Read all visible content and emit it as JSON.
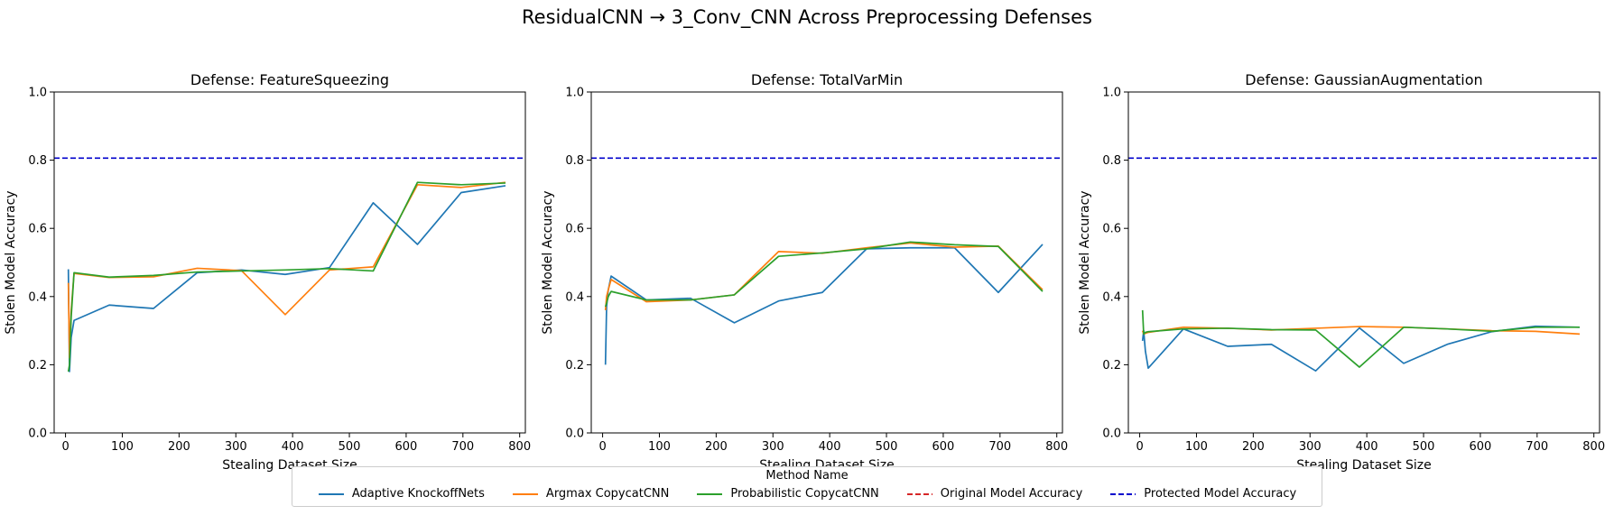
{
  "chart_data": {
    "suptitle": "ResidualCNN → 3_Conv_CNN Across Preprocessing Defenses",
    "x_ticks": [
      0,
      100,
      200,
      300,
      400,
      500,
      600,
      700,
      800
    ],
    "y_ticks": [
      "0.0",
      "0.2",
      "0.4",
      "0.6",
      "0.8",
      "1.0"
    ],
    "xlim": [
      -20,
      810
    ],
    "ylim": [
      0,
      1
    ],
    "colors": {
      "Adaptive KnockoffNets": "#1f77b4",
      "Argmax CopycatCNN": "#ff7f0e",
      "Probabilistic CopycatCNN": "#2ca02c",
      "Original Model Accuracy": "#d62728",
      "Protected Model Accuracy": "#0000cc"
    },
    "legend": {
      "title": "Method Name",
      "entries": [
        {
          "label": "Adaptive KnockoffNets",
          "style": "solid"
        },
        {
          "label": "Argmax CopycatCNN",
          "style": "solid"
        },
        {
          "label": "Probabilistic CopycatCNN",
          "style": "solid"
        },
        {
          "label": "Original Model Accuracy",
          "style": "dashed"
        },
        {
          "label": "Protected Model Accuracy",
          "style": "dashed"
        }
      ]
    },
    "charts": [
      {
        "type": "line",
        "title": "Defense: FeatureSqueezing",
        "xlabel": "Stealing Dataset Size",
        "ylabel": "Stolen Model Accuracy",
        "protected_accuracy": 0.806,
        "series": [
          {
            "name": "Adaptive KnockoffNets",
            "x": [
              5,
              7,
              10,
              15,
              77,
              155,
              232,
              310,
              387,
              465,
              542,
              620,
              697,
              775
            ],
            "y": [
              0.48,
              0.18,
              0.28,
              0.33,
              0.375,
              0.365,
              0.47,
              0.478,
              0.465,
              0.485,
              0.675,
              0.553,
              0.705,
              0.725
            ]
          },
          {
            "name": "Argmax CopycatCNN",
            "x": [
              5,
              7,
              10,
              15,
              77,
              155,
              232,
              310,
              387,
              465,
              542,
              620,
              697,
              775
            ],
            "y": [
              0.44,
              0.22,
              0.36,
              0.468,
              0.456,
              0.458,
              0.483,
              0.476,
              0.347,
              0.478,
              0.487,
              0.728,
              0.72,
              0.735
            ]
          },
          {
            "name": "Probabilistic CopycatCNN",
            "x": [
              5,
              7,
              10,
              15,
              77,
              155,
              232,
              310,
              387,
              465,
              542,
              620,
              697,
              775
            ],
            "y": [
              0.18,
              0.2,
              0.34,
              0.47,
              0.457,
              0.462,
              0.472,
              0.475,
              0.478,
              0.482,
              0.475,
              0.735,
              0.728,
              0.733
            ]
          }
        ]
      },
      {
        "type": "line",
        "title": "Defense: TotalVarMin",
        "xlabel": "Stealing Dataset Size",
        "ylabel": "Stolen Model Accuracy",
        "protected_accuracy": 0.806,
        "series": [
          {
            "name": "Adaptive KnockoffNets",
            "x": [
              5,
              7,
              10,
              15,
              77,
              155,
              232,
              310,
              387,
              465,
              542,
              620,
              697,
              775
            ],
            "y": [
              0.2,
              0.37,
              0.42,
              0.46,
              0.39,
              0.395,
              0.323,
              0.387,
              0.412,
              0.54,
              0.543,
              0.543,
              0.412,
              0.553
            ]
          },
          {
            "name": "Argmax CopycatCNN",
            "x": [
              5,
              7,
              10,
              15,
              77,
              155,
              232,
              310,
              387,
              465,
              542,
              620,
              697,
              775
            ],
            "y": [
              0.36,
              0.4,
              0.42,
              0.45,
              0.385,
              0.39,
              0.405,
              0.532,
              0.527,
              0.543,
              0.557,
              0.545,
              0.548,
              0.42
            ]
          },
          {
            "name": "Probabilistic CopycatCNN",
            "x": [
              5,
              7,
              10,
              15,
              77,
              155,
              232,
              310,
              387,
              465,
              542,
              620,
              697,
              775
            ],
            "y": [
              0.37,
              0.38,
              0.4,
              0.415,
              0.39,
              0.39,
              0.405,
              0.518,
              0.528,
              0.54,
              0.56,
              0.552,
              0.547,
              0.415
            ]
          }
        ]
      },
      {
        "type": "line",
        "title": "Defense: GaussianAugmentation",
        "xlabel": "Stealing Dataset Size",
        "ylabel": "Stolen Model Accuracy",
        "protected_accuracy": 0.806,
        "series": [
          {
            "name": "Adaptive KnockoffNets",
            "x": [
              5,
              7,
              10,
              15,
              77,
              155,
              232,
              310,
              387,
              465,
              542,
              620,
              697,
              775
            ],
            "y": [
              0.27,
              0.3,
              0.24,
              0.19,
              0.305,
              0.254,
              0.26,
              0.182,
              0.308,
              0.204,
              0.26,
              0.297,
              0.313,
              0.31
            ]
          },
          {
            "name": "Argmax CopycatCNN",
            "x": [
              5,
              7,
              10,
              15,
              77,
              155,
              232,
              310,
              387,
              465,
              542,
              620,
              697,
              775
            ],
            "y": [
              0.3,
              0.29,
              0.292,
              0.295,
              0.31,
              0.307,
              0.302,
              0.307,
              0.312,
              0.31,
              0.305,
              0.3,
              0.298,
              0.29
            ]
          },
          {
            "name": "Probabilistic CopycatCNN",
            "x": [
              5,
              7,
              10,
              15,
              77,
              155,
              232,
              310,
              387,
              465,
              542,
              620,
              697,
              775
            ],
            "y": [
              0.36,
              0.29,
              0.295,
              0.297,
              0.305,
              0.307,
              0.303,
              0.302,
              0.193,
              0.31,
              0.305,
              0.298,
              0.31,
              0.31
            ]
          }
        ]
      }
    ]
  }
}
